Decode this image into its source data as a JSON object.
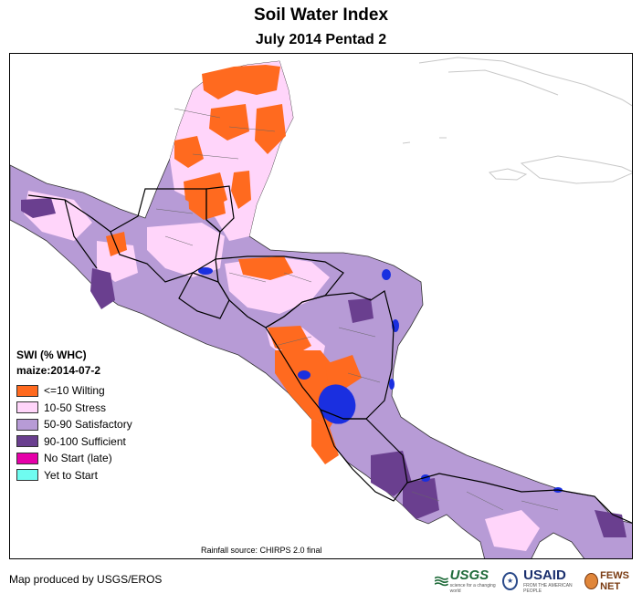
{
  "title": "Soil Water Index",
  "subtitle": "July 2014 Pentad 2",
  "legend": {
    "title": "SWI (% WHC)",
    "subtitle": "maize:2014-07-2",
    "items": [
      {
        "label": "<=10 Wilting",
        "color": "#ff6a1f"
      },
      {
        "label": "10-50 Stress",
        "color": "#ffd5fa"
      },
      {
        "label": "50-90 Satisfactory",
        "color": "#b79bd6"
      },
      {
        "label": "90-100 Sufficient",
        "color": "#6a3f8f"
      },
      {
        "label": "No Start (late)",
        "color": "#e600a9"
      },
      {
        "label": "Yet to Start",
        "color": "#6ffcf0"
      }
    ]
  },
  "water_color": "#1a2fe0",
  "rainfall_source": "Rainfall source: CHIRPS 2.0 final",
  "credit": "Map produced by USGS/EROS",
  "logos": {
    "usgs": "USGS",
    "usgs_tagline": "science for a changing world",
    "usaid": "USAID",
    "usaid_tagline": "FROM THE AMERICAN PEOPLE",
    "fews": "FEWS NET"
  }
}
